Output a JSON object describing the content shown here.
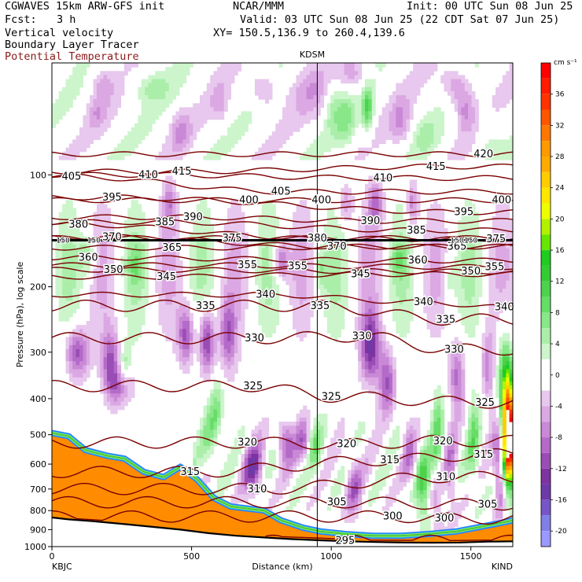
{
  "header": {
    "model_line": "CGWAVES 15km ARW-GFS init",
    "fcst_label": "Fcst:",
    "fcst_value": "3 h",
    "field_1": "Vertical velocity",
    "field_2": "Boundary Layer Tracer",
    "field_3": "Potential Temperature",
    "org": "NCAR/MMM",
    "init": "Init: 00 UTC Sun 08 Jun 25",
    "valid": "Valid: 03 UTC Sun 08 Jun 25 (22 CDT Sat 07 Jun 25)",
    "xy": "XY= 150.5,136.9 to 260.4,139.6",
    "colors": {
      "field_3": "#8b1a1a"
    }
  },
  "chart_data": {
    "type": "heatmap",
    "title": "",
    "xlabel": "Distance (km)",
    "ylabel": "Pressure (hPa), log scale",
    "x_ticks": [
      "0",
      "500",
      "1000",
      "1500"
    ],
    "xlim": [
      0,
      1650
    ],
    "y_ticks": [
      "100",
      "200",
      "300",
      "400",
      "500",
      "600",
      "700",
      "800",
      "900",
      "1000"
    ],
    "y_scale": "log",
    "ylim": [
      1000,
      50
    ],
    "endpoints": {
      "left": "KBJC",
      "right": "KIND"
    },
    "marker_label": "KDSM",
    "marker_x_km": 950,
    "colorbar": {
      "unit": "cm s⁻¹",
      "ticks": [
        "36",
        "32",
        "28",
        "24",
        "20",
        "16",
        "12",
        "8",
        "4",
        "0",
        "-4",
        "-8",
        "-12",
        "-16",
        "-20"
      ],
      "levels": [
        {
          "from": 38,
          "to": 40,
          "color": "#ff0000"
        },
        {
          "from": 36,
          "to": 38,
          "color": "#ff1a00"
        },
        {
          "from": 34,
          "to": 36,
          "color": "#ff3300"
        },
        {
          "from": 32,
          "to": 34,
          "color": "#ff5500"
        },
        {
          "from": 30,
          "to": 32,
          "color": "#ff7700"
        },
        {
          "from": 28,
          "to": 30,
          "color": "#ff9900"
        },
        {
          "from": 26,
          "to": 28,
          "color": "#ffaa00"
        },
        {
          "from": 24,
          "to": 26,
          "color": "#ffcc00"
        },
        {
          "from": 22,
          "to": 24,
          "color": "#ffe600"
        },
        {
          "from": 20,
          "to": 22,
          "color": "#eeff00"
        },
        {
          "from": 18,
          "to": 20,
          "color": "#b2f200"
        },
        {
          "from": 16,
          "to": 18,
          "color": "#66e600"
        },
        {
          "from": 14,
          "to": 16,
          "color": "#1fcc1f"
        },
        {
          "from": 12,
          "to": 14,
          "color": "#33cc33"
        },
        {
          "from": 10,
          "to": 12,
          "color": "#4dd24d"
        },
        {
          "from": 8,
          "to": 10,
          "color": "#66dd66"
        },
        {
          "from": 6,
          "to": 8,
          "color": "#88e788"
        },
        {
          "from": 4,
          "to": 6,
          "color": "#aaeeaa"
        },
        {
          "from": 2,
          "to": 4,
          "color": "#ccf5cc"
        },
        {
          "from": -2,
          "to": 2,
          "color": "#ffffff"
        },
        {
          "from": -4,
          "to": -2,
          "color": "#e8c8ee"
        },
        {
          "from": -6,
          "to": -4,
          "color": "#dba8e3"
        },
        {
          "from": -8,
          "to": -6,
          "color": "#c989d6"
        },
        {
          "from": -10,
          "to": -8,
          "color": "#b46ac8"
        },
        {
          "from": -12,
          "to": -10,
          "color": "#9a4db5"
        },
        {
          "from": -14,
          "to": -12,
          "color": "#7d33a0"
        },
        {
          "from": -16,
          "to": -14,
          "color": "#6e3aa8"
        },
        {
          "from": -18,
          "to": -16,
          "color": "#7755c8"
        },
        {
          "from": -20,
          "to": -18,
          "color": "#7f7fe6"
        },
        {
          "from": -22,
          "to": -20,
          "color": "#9999ff"
        }
      ]
    },
    "theta_contours": [
      {
        "value": 295,
        "labels": [
          {
            "x": 1050,
            "p": 965
          }
        ]
      },
      {
        "value": 300,
        "labels": [
          {
            "x": 1220,
            "p": 830
          },
          {
            "x": 1405,
            "p": 840
          }
        ]
      },
      {
        "value": 305,
        "labels": [
          {
            "x": 1020,
            "p": 760
          },
          {
            "x": 1560,
            "p": 770
          }
        ]
      },
      {
        "value": 310,
        "labels": [
          {
            "x": 735,
            "p": 700
          },
          {
            "x": 1410,
            "p": 650
          }
        ]
      },
      {
        "value": 315,
        "labels": [
          {
            "x": 495,
            "p": 630
          },
          {
            "x": 1210,
            "p": 585
          },
          {
            "x": 1545,
            "p": 565
          }
        ]
      },
      {
        "value": 320,
        "labels": [
          {
            "x": 700,
            "p": 525
          },
          {
            "x": 1055,
            "p": 530
          },
          {
            "x": 1400,
            "p": 520
          }
        ]
      },
      {
        "value": 325,
        "labels": [
          {
            "x": 720,
            "p": 370
          },
          {
            "x": 1000,
            "p": 395
          },
          {
            "x": 1550,
            "p": 410
          }
        ]
      },
      {
        "value": 330,
        "labels": [
          {
            "x": 725,
            "p": 275
          },
          {
            "x": 1110,
            "p": 272
          },
          {
            "x": 1440,
            "p": 295
          }
        ]
      },
      {
        "value": 335,
        "labels": [
          {
            "x": 550,
            "p": 225
          },
          {
            "x": 960,
            "p": 225
          },
          {
            "x": 1410,
            "p": 245
          }
        ]
      },
      {
        "value": 340,
        "labels": [
          {
            "x": 765,
            "p": 210
          },
          {
            "x": 1330,
            "p": 220
          },
          {
            "x": 1620,
            "p": 227
          }
        ]
      },
      {
        "value": 345,
        "labels": [
          {
            "x": 410,
            "p": 188
          },
          {
            "x": 1105,
            "p": 185
          }
        ]
      },
      {
        "value": 350,
        "labels": [
          {
            "x": 220,
            "p": 180
          },
          {
            "x": 1500,
            "p": 182
          }
        ]
      },
      {
        "value": 355,
        "labels": [
          {
            "x": 700,
            "p": 175
          },
          {
            "x": 880,
            "p": 176
          },
          {
            "x": 1585,
            "p": 177
          }
        ]
      },
      {
        "value": 360,
        "labels": [
          {
            "x": 130,
            "p": 167
          },
          {
            "x": 1310,
            "p": 170
          }
        ]
      },
      {
        "value": 365,
        "labels": [
          {
            "x": 430,
            "p": 157
          },
          {
            "x": 1450,
            "p": 156
          }
        ]
      },
      {
        "value": 370,
        "labels": [
          {
            "x": 215,
            "p": 147
          },
          {
            "x": 1020,
            "p": 156
          }
        ]
      },
      {
        "value": 375,
        "labels": [
          {
            "x": 645,
            "p": 148
          },
          {
            "x": 1590,
            "p": 149
          }
        ]
      },
      {
        "value": 380,
        "labels": [
          {
            "x": 95,
            "p": 136
          },
          {
            "x": 950,
            "p": 148
          }
        ]
      },
      {
        "value": 385,
        "labels": [
          {
            "x": 405,
            "p": 134
          },
          {
            "x": 1305,
            "p": 141
          }
        ]
      },
      {
        "value": 390,
        "labels": [
          {
            "x": 505,
            "p": 130
          },
          {
            "x": 1140,
            "p": 133
          }
        ]
      },
      {
        "value": 395,
        "labels": [
          {
            "x": 215,
            "p": 115
          },
          {
            "x": 1475,
            "p": 126
          }
        ]
      },
      {
        "value": 400,
        "labels": [
          {
            "x": 705,
            "p": 117
          },
          {
            "x": 965,
            "p": 117
          },
          {
            "x": 1610,
            "p": 117
          }
        ]
      },
      {
        "value": 405,
        "labels": [
          {
            "x": 70,
            "p": 101
          },
          {
            "x": 820,
            "p": 111
          }
        ]
      },
      {
        "value": 410,
        "labels": [
          {
            "x": 345,
            "p": 100
          },
          {
            "x": 1185,
            "p": 102
          }
        ]
      },
      {
        "value": 415,
        "labels": [
          {
            "x": 465,
            "p": 98
          },
          {
            "x": 1375,
            "p": 95
          }
        ]
      },
      {
        "value": 420,
        "labels": [
          {
            "x": 1545,
            "p": 88
          }
        ]
      }
    ],
    "tropopause_labels": [
      {
        "x": 40,
        "text": "150"
      },
      {
        "x": 150,
        "text": "150"
      },
      {
        "x": 1450,
        "text": "150"
      },
      {
        "x": 1500,
        "text": "150"
      }
    ],
    "colors": {
      "theta_line": "#7a0000",
      "terrain": "#ff8c00",
      "tracer": "#ff8c00",
      "marker_line": "#000000",
      "tropopause": "#000000"
    }
  }
}
